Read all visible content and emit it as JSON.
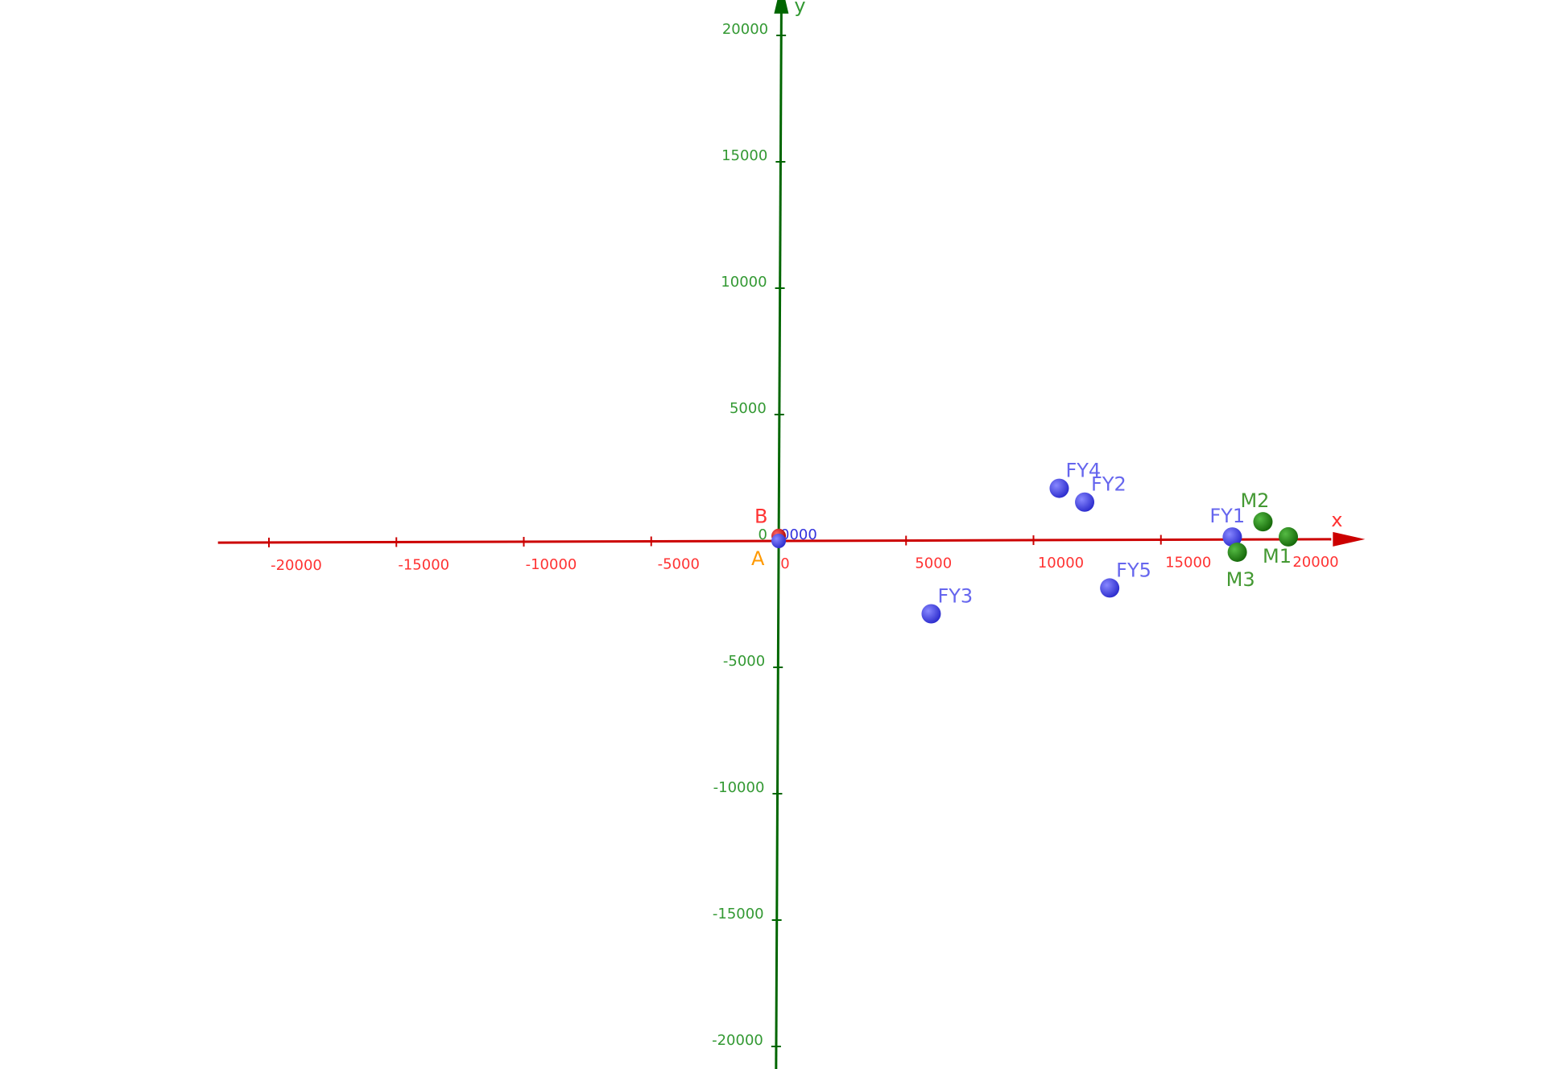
{
  "chart_data": {
    "type": "scatter",
    "x_axis": {
      "label": "x",
      "range": [
        -22000,
        22000
      ],
      "ticks": [
        -20000,
        -15000,
        -10000,
        -5000,
        0,
        5000,
        10000,
        15000,
        20000
      ],
      "tick_labels": [
        "-20000",
        "-15000",
        "-10000",
        "-5000",
        "0",
        "5000",
        "10000",
        "15000",
        "20000"
      ]
    },
    "y_axis": {
      "label": "y",
      "range": [
        -21000,
        21500
      ],
      "ticks": [
        -20000,
        -15000,
        -10000,
        -5000,
        0,
        5000,
        10000,
        15000,
        20000
      ],
      "tick_labels": [
        "-20000",
        "-15000",
        "-10000",
        "-5000",
        "0",
        "5000",
        "10000",
        "15000",
        "20000"
      ]
    },
    "origin_cluster_label": "0000",
    "grid": false,
    "colors": {
      "x_axis": "#cc0000",
      "y_axis": "#006600",
      "x_tick_label": "#ff3333",
      "y_tick_label": "#339933",
      "blue_point": "#4444ee",
      "blue_label": "#6666ee",
      "green_point": "#228811",
      "green_label": "#449933",
      "red_point": "#dd1111",
      "red_label": "#ff3333",
      "orange_label": "#ff9900"
    },
    "points": [
      {
        "label": "B",
        "x": 0,
        "y": 200,
        "color": "red",
        "label_pos": "upper-left"
      },
      {
        "label": "A",
        "x": 0,
        "y": 0,
        "color": "blue",
        "label_text_color": "orange",
        "label_pos": "lower-left"
      },
      {
        "label": "FY1",
        "x": 17800,
        "y": 100,
        "color": "blue",
        "label_pos": "upper-left"
      },
      {
        "label": "FY2",
        "x": 12000,
        "y": 1500,
        "color": "blue",
        "label_pos": "upper-right"
      },
      {
        "label": "FY3",
        "x": 6000,
        "y": -2900,
        "color": "blue",
        "label_pos": "upper-right"
      },
      {
        "label": "FY4",
        "x": 11000,
        "y": 2050,
        "color": "blue",
        "label_pos": "upper-right"
      },
      {
        "label": "FY5",
        "x": 13000,
        "y": -1900,
        "color": "blue",
        "label_pos": "upper-right"
      },
      {
        "label": "M1",
        "x": 20000,
        "y": 100,
        "color": "green",
        "label_pos": "lower-left"
      },
      {
        "label": "M2",
        "x": 19000,
        "y": 700,
        "color": "green",
        "label_pos": "upper-left"
      },
      {
        "label": "M3",
        "x": 18000,
        "y": -500,
        "color": "green",
        "label_pos": "below"
      }
    ]
  }
}
